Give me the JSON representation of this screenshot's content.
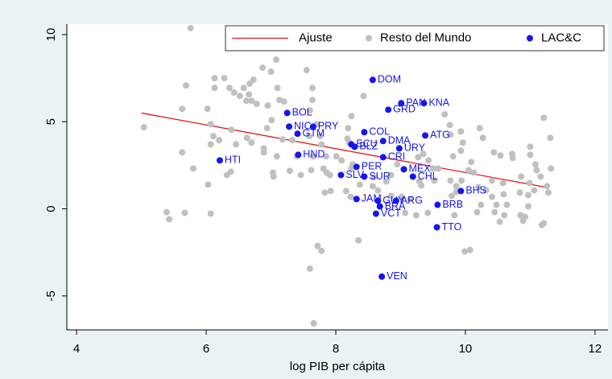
{
  "chart_data": {
    "type": "scatter",
    "xlabel": "log PIB per cápita",
    "xlim": [
      3.85,
      12.2
    ],
    "xticks": [
      4,
      6,
      8,
      10,
      12
    ],
    "ylim": [
      -6.95,
      10.6
    ],
    "yticks": [
      -5,
      0,
      5,
      10
    ],
    "grid": false,
    "legend": "top-right",
    "series": [
      {
        "name": "Ajuste",
        "type": "line",
        "color": "#e8191b",
        "x": [
          5.0,
          11.3
        ],
        "values": [
          5.5,
          1.2
        ]
      },
      {
        "name": "Resto del Mundo",
        "type": "scatter",
        "color": "#c0c0c0",
        "x": [
          5.04,
          5.76,
          5.63,
          5.69,
          5.63,
          6.02,
          6.07,
          6.13,
          6.28,
          6.13,
          6.36,
          6.43,
          6.52,
          6.58,
          6.67,
          6.73,
          6.7,
          6.62,
          6.78,
          6.66,
          6.87,
          7.08,
          7.0,
          6.95,
          7.1,
          7.2,
          7.13,
          7.01,
          6.94,
          6.89,
          6.89,
          7.09,
          7.04,
          7.03,
          7.55,
          7.64,
          7.64,
          7.6,
          7.71,
          7.76,
          7.78,
          7.85,
          7.81,
          7.86,
          7.91,
          7.83,
          7.92,
          7.65,
          7.62,
          7.46,
          7.59,
          7.33,
          7.18,
          7.4,
          7.29,
          7.72,
          7.78,
          7.6,
          7.66,
          6.11,
          6.07,
          6.2,
          6.46,
          6.39,
          6.63,
          6.7,
          5.8,
          5.39,
          5.43,
          5.67,
          6.07,
          6.03,
          6.38,
          6.32,
          8.43,
          8.24,
          8.19,
          8.18,
          8.26,
          8.16,
          8.23,
          8.24,
          8.09,
          8.01,
          8.21,
          8.37,
          8.35,
          8.59,
          8.57,
          8.65,
          8.78,
          8.85,
          9.02,
          9.15,
          8.85,
          8.95,
          9.24,
          9.42,
          9.07,
          9.32,
          9.29,
          9.27,
          9.35,
          9.43,
          9.5,
          9.52,
          9.58,
          9.77,
          9.81,
          9.77,
          9.76,
          9.68,
          10.09,
          10.13,
          10.2,
          10.05,
          9.94,
          9.86,
          9.86,
          9.79,
          9.83,
          9.99,
          10.07,
          10.24,
          10.18,
          10.32,
          10.41,
          10.41,
          10.48,
          10.45,
          10.58,
          10.59,
          10.64,
          10.6,
          10.53,
          10.84,
          10.86,
          10.99,
          10.97,
          10.97,
          11.06,
          11.16,
          11.26,
          11.28,
          11.32,
          10.85,
          10.92,
          10.89,
          11.1,
          11.08,
          11.0,
          11.0,
          11.18,
          11.21,
          10.44,
          10.27,
          10.22,
          9.93,
          9.96,
          9.93,
          11.31,
          11.21,
          10.54,
          10.72,
          10.73
        ],
        "values": [
          4.68,
          10.37,
          5.74,
          7.08,
          3.24,
          5.74,
          4.86,
          7.5,
          7.5,
          6.94,
          6.94,
          6.67,
          6.48,
          6.94,
          7.18,
          7.41,
          6.2,
          6.2,
          6.02,
          6.57,
          8.1,
          8.56,
          7.87,
          5.93,
          6.94,
          6.16,
          6.25,
          5.09,
          4.63,
          3.47,
          3.24,
          3.01,
          1.85,
          2.08,
          7.96,
          6.94,
          6.25,
          5.65,
          4.86,
          4.17,
          3.7,
          3.01,
          2.31,
          2.08,
          1.94,
          0.93,
          1.02,
          3.01,
          2.22,
          1.94,
          4.17,
          3.94,
          3.98,
          3.01,
          2.18,
          -2.13,
          -2.41,
          -3.43,
          -6.57,
          4.17,
          3.7,
          3.94,
          3.7,
          4.54,
          4.07,
          3.8,
          2.31,
          -0.19,
          -0.6,
          -0.23,
          -0.28,
          1.39,
          2.13,
          1.94,
          6.48,
          5.32,
          4.63,
          4.03,
          2.55,
          1.02,
          0.69,
          2.31,
          2.78,
          3.01,
          3.8,
          1.39,
          -1.81,
          1.81,
          1.3,
          1.06,
          1.57,
          0.74,
          0.69,
          0.56,
          1.94,
          2.55,
          -0.37,
          -0.23,
          -0.23,
          1.34,
          1.57,
          2.96,
          3.15,
          2.78,
          2.31,
          1.62,
          2.31,
          1.62,
          3.01,
          4.26,
          4.81,
          5.42,
          2.69,
          2.08,
          1.25,
          2.22,
          1.62,
          1.3,
          0.97,
          0.74,
          -0.37,
          -2.45,
          -2.36,
          0.23,
          -0.19,
          1.06,
          1.62,
          0.69,
          0.23,
          -0.19,
          1.48,
          0.83,
          0.23,
          -0.37,
          -0.74,
          0.93,
          1.85,
          1.48,
          0.79,
          0.14,
          1.06,
          1.85,
          1.3,
          0.93,
          2.31,
          -0.37,
          -0.46,
          -0.69,
          2.22,
          2.55,
          3.1,
          3.56,
          -0.93,
          -0.83,
          3.24,
          4.07,
          4.63,
          4.44,
          3.8,
          3.33,
          4.07,
          5.23,
          3.06,
          3.15,
          2.92
        ]
      },
      {
        "name": "LAC&C",
        "type": "scatter",
        "color": "#1515f0",
        "labels": [
          "DOM",
          "PAN",
          "KNA",
          "GRD",
          "BOL",
          "NIC",
          "PRY",
          "GTM",
          "COL",
          "ATG",
          "DMA",
          "ECU",
          "BLZ",
          "URY",
          "CRI",
          "HND",
          "HTI",
          "PER",
          "MEX",
          "SLV",
          "SUR",
          "CHL",
          "BHS",
          "JAM",
          "GUY",
          "ARG",
          "BRA",
          "BRB",
          "VCT",
          "TTO",
          "VEN"
        ],
        "x": [
          8.57,
          9.01,
          9.36,
          8.81,
          7.25,
          7.28,
          7.65,
          7.41,
          8.44,
          9.38,
          8.73,
          8.24,
          8.29,
          8.98,
          8.73,
          7.42,
          6.21,
          8.32,
          9.05,
          8.08,
          8.44,
          9.19,
          9.93,
          8.32,
          8.65,
          8.93,
          8.68,
          9.57,
          8.62,
          9.56,
          8.71
        ],
        "values": [
          7.4,
          6.06,
          6.06,
          5.69,
          5.5,
          4.72,
          4.72,
          4.31,
          4.4,
          4.21,
          3.89,
          3.7,
          3.56,
          3.47,
          2.96,
          3.1,
          2.78,
          2.41,
          2.27,
          1.94,
          1.85,
          1.85,
          1.02,
          0.56,
          0.46,
          0.46,
          0.14,
          0.23,
          -0.28,
          -1.06,
          -3.89
        ]
      }
    ]
  }
}
